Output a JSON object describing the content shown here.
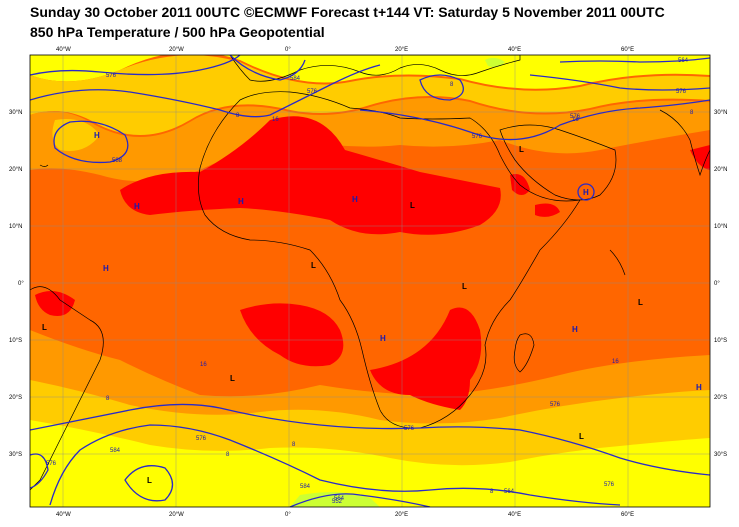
{
  "header": {
    "title_line1": "Sunday 30 October 2011 00UTC ©ECMWF Forecast t+144 VT: Saturday 5 November 2011 00UTC",
    "title_line2": "850 hPa Temperature / 500 hPa Geopotential"
  },
  "map": {
    "lon_top": [
      "40°W",
      "20°W",
      "0°",
      "20°E",
      "40°E",
      "60°E"
    ],
    "lon_bottom": [
      "40°W",
      "20°W",
      "0°",
      "20°E",
      "40°E",
      "60°E"
    ],
    "lat_left": [
      "30°N",
      "20°N",
      "10°N",
      "0°",
      "10°S",
      "20°S",
      "30°S"
    ],
    "lat_right": [
      "30°N",
      "20°N",
      "10°N",
      "0°",
      "10°S",
      "20°S",
      "30°S"
    ],
    "colors": {
      "temp_16_20": "#ffcc00",
      "temp_20_24": "#ff9900",
      "temp_24_28": "#ff6600",
      "temp_28_plus": "#ff0000",
      "temp_12_16": "#ffff00",
      "temp_8_12": "#ccff33",
      "isoline": "#2a2ac8"
    },
    "pressure_centers": [
      {
        "label": "H"
      },
      {
        "label": "H"
      },
      {
        "label": "H"
      },
      {
        "label": "H"
      },
      {
        "label": "L"
      },
      {
        "label": "L"
      },
      {
        "label": "L"
      },
      {
        "label": "L"
      },
      {
        "label": "H"
      },
      {
        "label": "H"
      },
      {
        "label": "L"
      },
      {
        "label": "L"
      },
      {
        "label": "H"
      },
      {
        "label": "L"
      },
      {
        "label": "H"
      },
      {
        "label": "L"
      },
      {
        "label": "L"
      },
      {
        "label": "H"
      }
    ],
    "contour_labels": [
      "576",
      "584",
      "576",
      "588",
      "576",
      "8",
      "16",
      "576",
      "8",
      "564",
      "576",
      "16",
      "8",
      "16",
      "8",
      "16",
      "576",
      "8",
      "576",
      "584",
      "576",
      "564",
      "584",
      "8",
      "552",
      "564",
      "576",
      "8",
      "576"
    ]
  }
}
